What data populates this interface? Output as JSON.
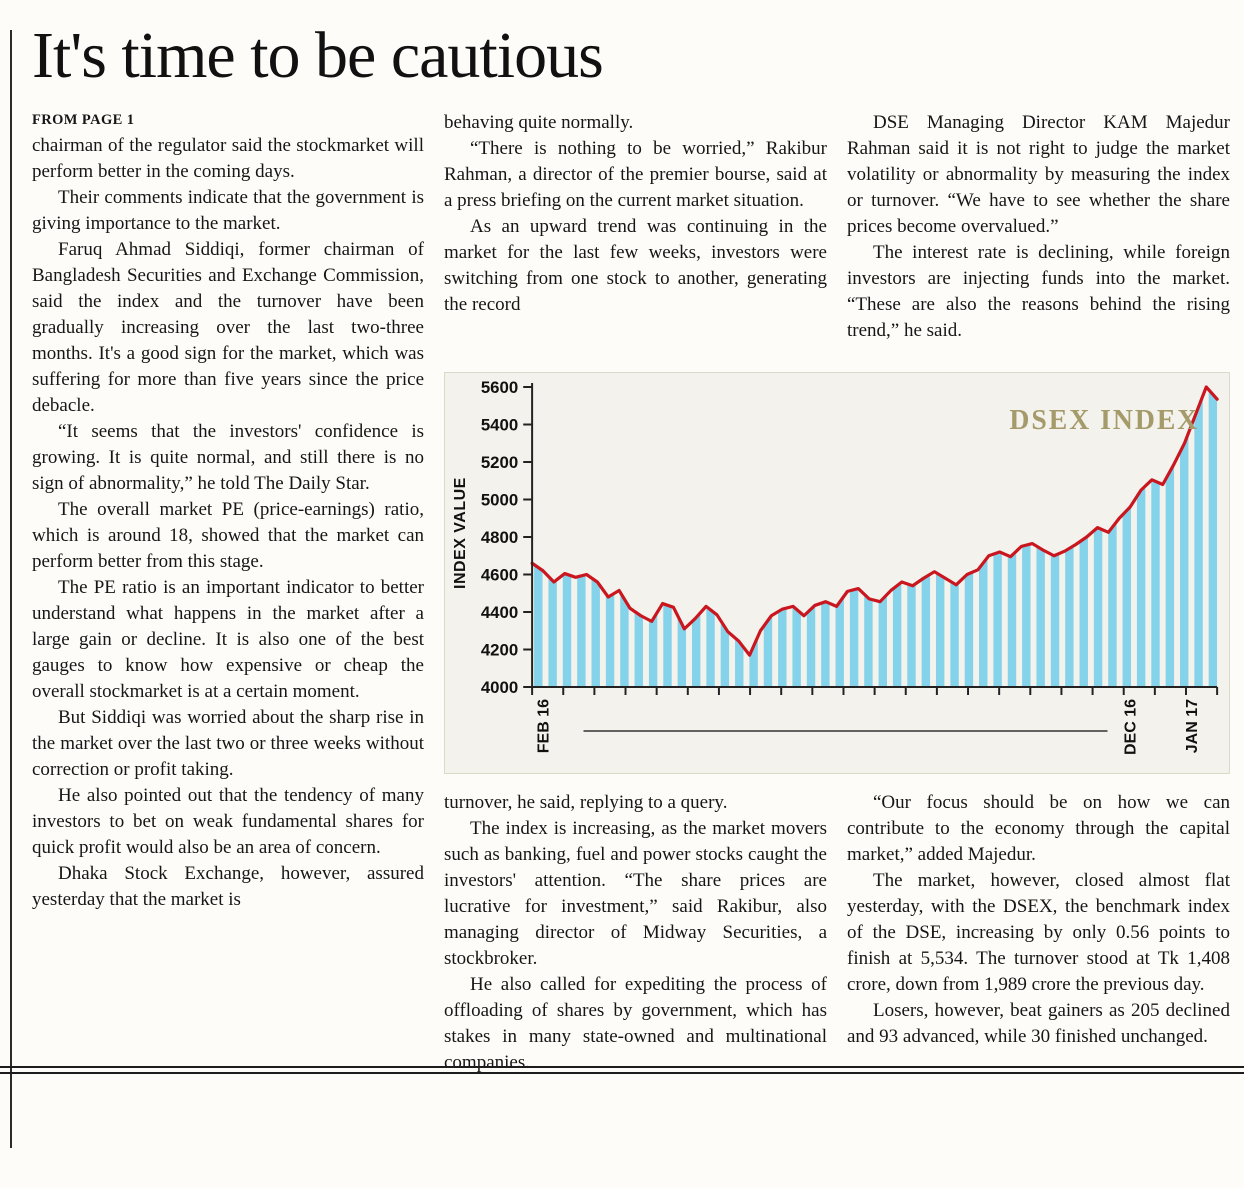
{
  "page": {
    "title": "It's time to be cautious",
    "kicker": "FROM PAGE 1"
  },
  "columns": {
    "col1": [
      "chairman of the regulator said the stockmarket will perform better in the coming days.",
      "Their comments indicate that the government is giving importance to the market.",
      "Faruq Ahmad Siddiqi, former chairman of Bangladesh Securities and Exchange Commission, said the index and the turnover have been gradually increasing over the last two-three months. It's a good sign for the market, which was suffering for more than five years since the price debacle.",
      "“It seems that the investors' confidence is growing. It is quite normal, and still there is no sign of abnormality,” he told The Daily Star.",
      "The overall market PE (price-earnings) ratio, which is around 18, showed that the market can perform better from this stage.",
      "The PE ratio is an important indicator to better understand what happens in the market after a large gain or decline. It is also one of the best gauges to know how expensive or cheap the overall stockmarket is at a certain moment.",
      "But Siddiqi was worried about the sharp rise in the market over the last two or three weeks without correction or profit taking.",
      "He also pointed out that the tendency of many investors to bet on weak fundamental shares for quick profit would also be an area of concern.",
      "Dhaka Stock Exchange, however, assured yesterday that the market is"
    ],
    "col2_top": [
      "behaving quite normally.",
      "“There is nothing to be worried,” Rakibur Rahman, a director of the premier bourse, said at a press briefing on the current market situation.",
      "As an upward trend was continuing in the market for the last few weeks, investors were switching from one stock to another, generating the record"
    ],
    "col3_top": [
      "DSE Managing Director KAM Majedur Rahman said it is not right to judge the market volatility or abnormality by measuring the index or turnover. “We have to see whether the share prices become overvalued.”",
      "The interest rate is declining, while foreign investors are injecting funds into the market. “These are also the reasons behind the rising trend,” he said."
    ],
    "col2_bottom": [
      "turnover, he said, replying to a query.",
      "The index is increasing, as the market movers such as banking, fuel and power stocks caught the investors' attention. “The share prices are lucrative for investment,” said Rakibur, also managing director of Midway Securities, a stockbroker.",
      "He also called for expediting the process of offloading of shares by government, which has stakes in many state-owned and multinational companies."
    ],
    "col3_bottom": [
      "“Our focus should be on how we can contribute to the economy through the capital market,” added Majedur.",
      "The market, however, closed almost flat yesterday, with the DSEX, the benchmark index of the DSE, increasing by only 0.56 points to finish at 5,534. The turnover stood at Tk 1,408 crore, down from 1,989 crore the previous day.",
      "Losers, however, beat gainers as 205 declined and 93 advanced, while 30 finished unchanged."
    ]
  },
  "chart_data": {
    "type": "area",
    "title": "DSEX INDEX",
    "ylabel": "INDEX VALUE",
    "ylim": [
      4000,
      5600
    ],
    "yticks": [
      4000,
      4200,
      4400,
      4600,
      4800,
      5000,
      5200,
      5400,
      5600
    ],
    "x_labels": [
      {
        "label": "FEB 16",
        "pos": 0.015
      },
      {
        "label": "DEC 16",
        "pos": 0.872
      },
      {
        "label": "JAN 17",
        "pos": 0.962
      }
    ],
    "series": [
      {
        "name": "DSEX",
        "values": [
          4660,
          4620,
          4560,
          4605,
          4585,
          4600,
          4560,
          4480,
          4515,
          4420,
          4380,
          4350,
          4445,
          4425,
          4310,
          4365,
          4430,
          4385,
          4295,
          4245,
          4170,
          4300,
          4380,
          4415,
          4430,
          4380,
          4435,
          4455,
          4430,
          4510,
          4525,
          4470,
          4455,
          4515,
          4560,
          4540,
          4580,
          4615,
          4580,
          4545,
          4600,
          4625,
          4700,
          4720,
          4695,
          4750,
          4765,
          4730,
          4700,
          4725,
          4760,
          4800,
          4850,
          4825,
          4900,
          4960,
          5050,
          5105,
          5080,
          5185,
          5300,
          5450,
          5600,
          5535
        ]
      }
    ],
    "legend_position": "top-right",
    "grid": false,
    "colors": {
      "line": "#c9161f",
      "area_stripe": "#84d3ea",
      "title": "#a59a6a",
      "axis": "#222222"
    }
  }
}
